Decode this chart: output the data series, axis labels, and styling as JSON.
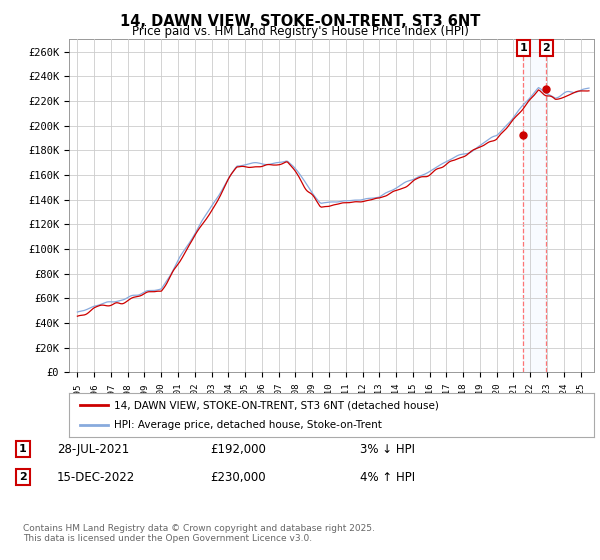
{
  "title": "14, DAWN VIEW, STOKE-ON-TRENT, ST3 6NT",
  "subtitle": "Price paid vs. HM Land Registry's House Price Index (HPI)",
  "ytick_vals": [
    0,
    20000,
    40000,
    60000,
    80000,
    100000,
    120000,
    140000,
    160000,
    180000,
    200000,
    220000,
    240000,
    260000
  ],
  "ylim": [
    0,
    270000
  ],
  "legend1_label": "14, DAWN VIEW, STOKE-ON-TRENT, ST3 6NT (detached house)",
  "legend2_label": "HPI: Average price, detached house, Stoke-on-Trent",
  "line1_color": "#cc0000",
  "line2_color": "#88aadd",
  "annotation1_label": "1",
  "annotation1_date": "28-JUL-2021",
  "annotation1_price": "£192,000",
  "annotation1_hpi": "3% ↓ HPI",
  "annotation2_label": "2",
  "annotation2_date": "15-DEC-2022",
  "annotation2_price": "£230,000",
  "annotation2_hpi": "4% ↑ HPI",
  "footer": "Contains HM Land Registry data © Crown copyright and database right 2025.\nThis data is licensed under the Open Government Licence v3.0.",
  "background_color": "#ffffff",
  "grid_color": "#cccccc",
  "shade_color": "#ddeeff",
  "sale1_year": 2021.583,
  "sale2_year": 2022.958,
  "sale1_price": 192000,
  "sale2_price": 230000
}
